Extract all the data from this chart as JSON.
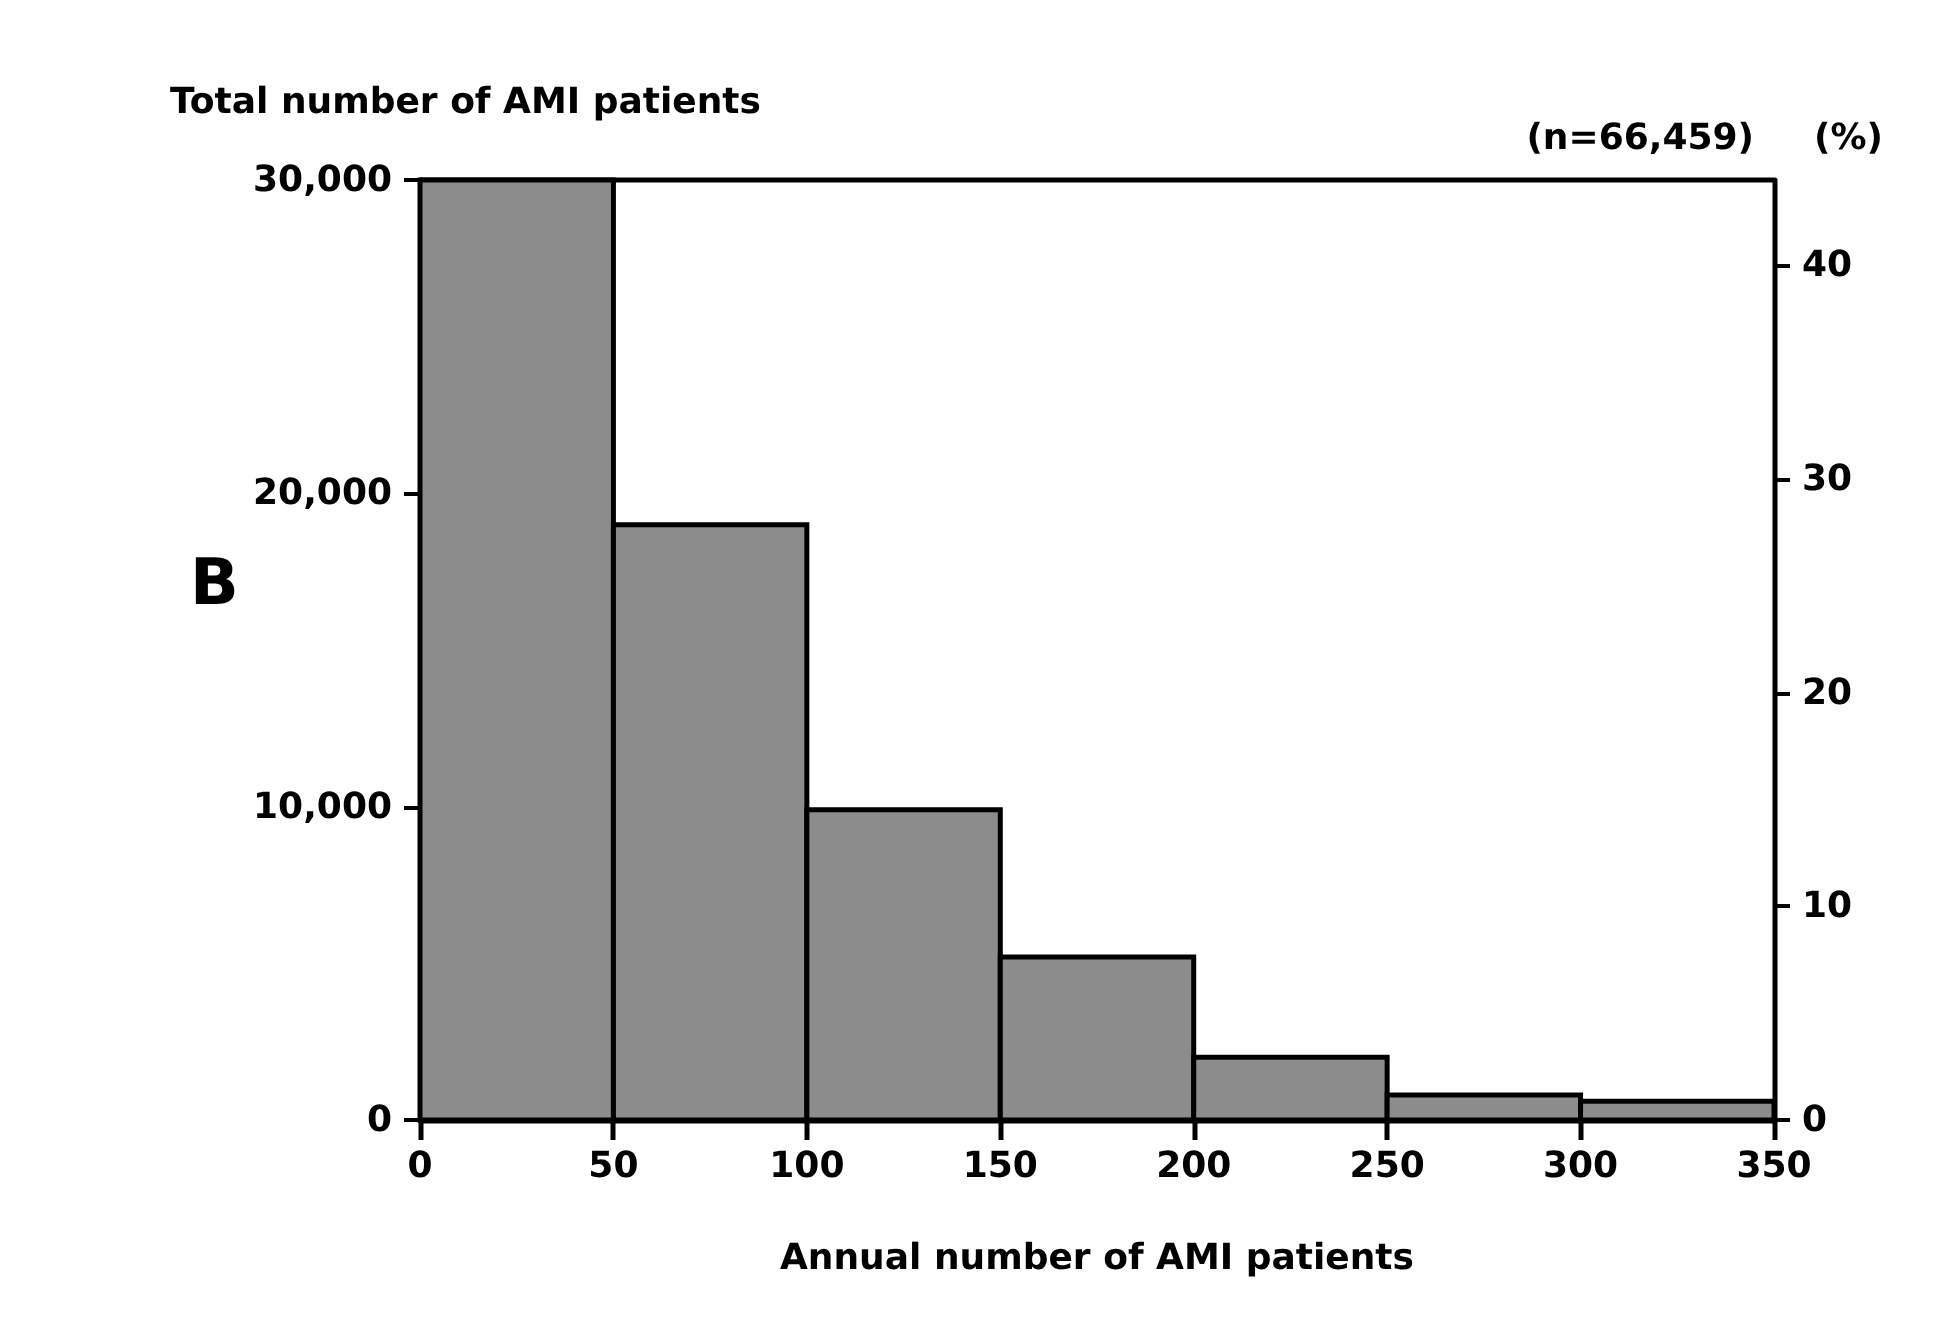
{
  "chart_data": {
    "type": "histogram",
    "ylabel": "Total number of AMI patients",
    "xlabel": "Annual number of AMI patients",
    "y2label": "(%)",
    "annotations": [
      "(n=66,459)",
      "B"
    ],
    "bins": [
      0,
      50,
      100,
      150,
      200,
      250,
      300,
      350
    ],
    "values": [
      30000,
      19000,
      9900,
      5200,
      2000,
      800,
      600
    ],
    "color": "#8c8c8c",
    "xlim": [
      0,
      350
    ],
    "xticks": [
      0,
      50,
      100,
      150,
      200,
      250,
      300,
      350
    ],
    "ylim": [
      0,
      30000
    ],
    "yticks": [
      0,
      {
        "value": 10000,
        "label": "10,000"
      },
      {
        "value": 20000,
        "label": "20,000"
      },
      {
        "value": 30000,
        "label": "30,000"
      }
    ],
    "y2lim": [
      0,
      44
    ],
    "y2ticks": [
      0,
      10,
      20,
      30,
      40
    ],
    "grid": false
  }
}
